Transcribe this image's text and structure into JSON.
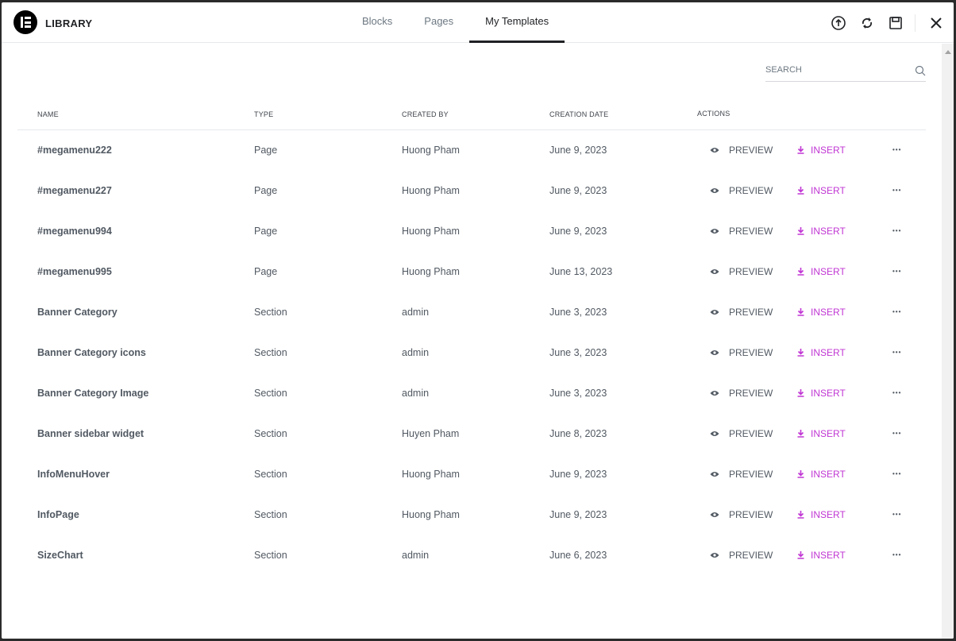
{
  "header": {
    "title": "LIBRARY",
    "tabs": [
      {
        "label": "Blocks"
      },
      {
        "label": "Pages"
      },
      {
        "label": "My Templates",
        "active": true
      }
    ]
  },
  "search": {
    "placeholder": "SEARCH"
  },
  "table": {
    "columns": [
      "NAME",
      "TYPE",
      "CREATED BY",
      "CREATION DATE",
      "ACTIONS"
    ],
    "preview_label": "PREVIEW",
    "insert_label": "INSERT",
    "more_label": "•••",
    "rows": [
      {
        "name": "#megamenu222",
        "type": "Page",
        "author": "Huong Pham",
        "date": "June 9, 2023"
      },
      {
        "name": "#megamenu227",
        "type": "Page",
        "author": "Huong Pham",
        "date": "June 9, 2023"
      },
      {
        "name": "#megamenu994",
        "type": "Page",
        "author": "Huong Pham",
        "date": "June 9, 2023"
      },
      {
        "name": "#megamenu995",
        "type": "Page",
        "author": "Huong Pham",
        "date": "June 13, 2023"
      },
      {
        "name": "Banner Category",
        "type": "Section",
        "author": "admin",
        "date": "June 3, 2023"
      },
      {
        "name": "Banner Category icons",
        "type": "Section",
        "author": "admin",
        "date": "June 3, 2023"
      },
      {
        "name": "Banner Category Image",
        "type": "Section",
        "author": "admin",
        "date": "June 3, 2023"
      },
      {
        "name": "Banner sidebar widget",
        "type": "Section",
        "author": "Huyen Pham",
        "date": "June 8, 2023"
      },
      {
        "name": "InfoMenuHover",
        "type": "Section",
        "author": "Huong Pham",
        "date": "June 9, 2023"
      },
      {
        "name": "InfoPage",
        "type": "Section",
        "author": "Huong Pham",
        "date": "June 9, 2023"
      },
      {
        "name": "SizeChart",
        "type": "Section",
        "author": "admin",
        "date": "June 6, 2023"
      }
    ]
  },
  "colors": {
    "accent": "#c036d3",
    "text": "#515962"
  }
}
